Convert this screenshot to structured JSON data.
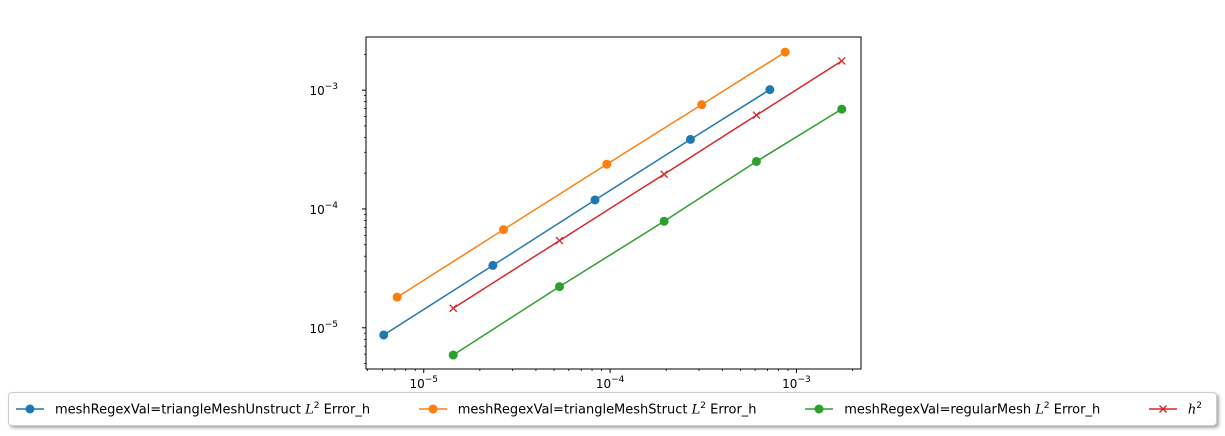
{
  "chart_data": {
    "type": "line",
    "xscale": "log",
    "yscale": "log",
    "xlim": [
      4.9e-06,
      0.00222
    ],
    "ylim": [
      4.5e-06,
      0.0028
    ],
    "xticks": [
      {
        "value": 1e-05,
        "base": "10",
        "exp": "−5"
      },
      {
        "value": 0.0001,
        "base": "10",
        "exp": "−4"
      },
      {
        "value": 0.001,
        "base": "10",
        "exp": "−3"
      }
    ],
    "yticks": [
      {
        "value": 1e-05,
        "base": "10",
        "exp": "−5"
      },
      {
        "value": 0.0001,
        "base": "10",
        "exp": "−4"
      },
      {
        "value": 0.001,
        "base": "10",
        "exp": "−3"
      }
    ],
    "grid": false,
    "legend_position": "bottom",
    "series": [
      {
        "name_prefix": "meshRegexVal=triangleMeshUnstruct ",
        "name_math": "L",
        "name_sup": "2",
        "name_suffix": " Error_h",
        "color": "#1f77b4",
        "marker": "circle",
        "x": [
          6.1e-06,
          2.35e-05,
          8.3e-05,
          0.00027,
          0.00072
        ],
        "y": [
          8.7e-06,
          3.35e-05,
          0.000119,
          0.000385,
          0.00101
        ]
      },
      {
        "name_prefix": "meshRegexVal=triangleMeshStruct ",
        "name_math": "L",
        "name_sup": "2",
        "name_suffix": " Error_h",
        "color": "#ff7f0e",
        "marker": "circle",
        "x": [
          7.2e-06,
          2.68e-05,
          9.6e-05,
          0.00031,
          0.00087
        ],
        "y": [
          1.81e-05,
          6.7e-05,
          0.000238,
          0.000755,
          0.00209
        ]
      },
      {
        "name_prefix": "meshRegexVal=regularMesh ",
        "name_math": "L",
        "name_sup": "2",
        "name_suffix": " Error_h",
        "color": "#2ca02c",
        "marker": "circle",
        "x": [
          1.44e-05,
          5.35e-05,
          0.000195,
          0.00061,
          0.00175
        ],
        "y": [
          5.9e-06,
          2.22e-05,
          7.88e-05,
          0.000251,
          0.000692
        ]
      },
      {
        "name_prefix": "",
        "name_math": "h",
        "name_sup": "2",
        "name_suffix": "",
        "color": "#d62728",
        "marker": "x",
        "x": [
          1.44e-05,
          5.35e-05,
          0.000195,
          0.00061,
          0.00175
        ],
        "y": [
          1.46e-05,
          5.42e-05,
          0.000196,
          0.000615,
          0.00176
        ]
      }
    ]
  }
}
